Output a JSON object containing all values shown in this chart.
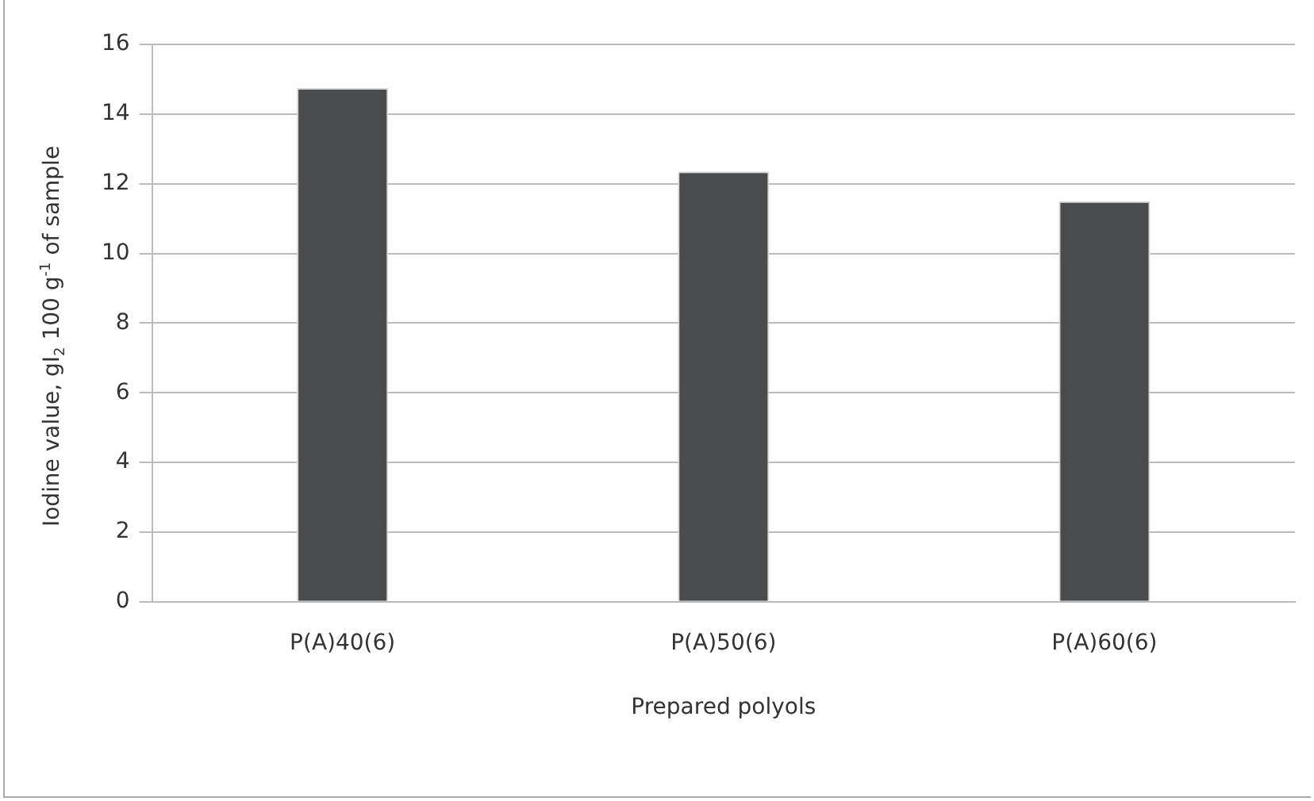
{
  "chart_data": {
    "type": "bar",
    "xlabel": "Prepared polyols",
    "ylabel": "Iodine value, gI$_{2}$ 100 g$^{-1}$ of sample",
    "categories": [
      "P(A)40(6)",
      "P(A)50(6)",
      "P(A)60(6)"
    ],
    "values": [
      14.75,
      12.35,
      11.5
    ],
    "color": "#4a4b4d",
    "ylim": [
      0,
      16
    ],
    "yticks": [
      0,
      2,
      4,
      6,
      8,
      10,
      12,
      14,
      16
    ],
    "grid": "y",
    "legend": false
  }
}
